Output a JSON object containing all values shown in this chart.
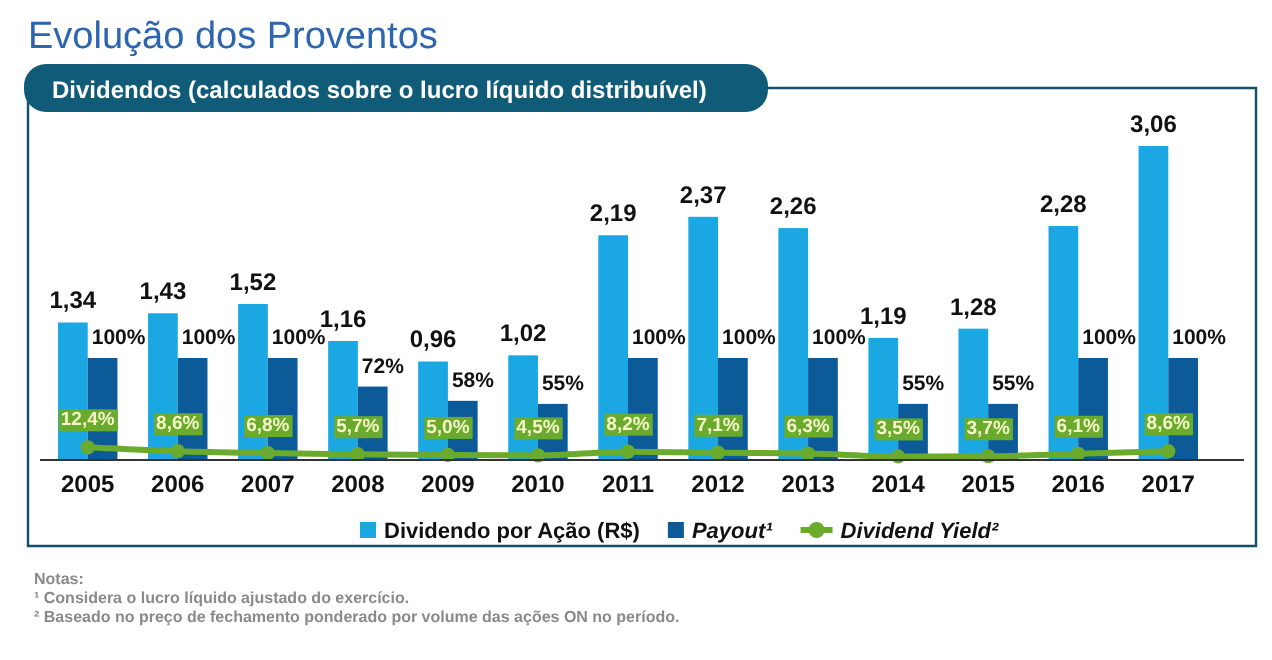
{
  "chart_data": {
    "type": "bar",
    "title": "Evolução dos Proventos",
    "subtitle": "Dividendos (calculados sobre o lucro líquido distribuível)",
    "categories": [
      "2005",
      "2006",
      "2007",
      "2008",
      "2009",
      "2010",
      "2011",
      "2012",
      "2013",
      "2014",
      "2015",
      "2016",
      "2017"
    ],
    "series": [
      {
        "name": "Dividendo por Ação (R$)",
        "color": "#1ba8e2",
        "values": [
          1.34,
          1.43,
          1.52,
          1.16,
          0.96,
          1.02,
          2.19,
          2.37,
          2.26,
          1.19,
          1.28,
          2.28,
          3.06
        ],
        "value_labels": [
          "1,34",
          "1,43",
          "1,52",
          "1,16",
          "0,96",
          "1,02",
          "2,19",
          "2,37",
          "2,26",
          "1,19",
          "1,28",
          "2,28",
          "3,06"
        ]
      },
      {
        "name": "Payout¹",
        "color": "#0c5a98",
        "axis": "y2",
        "values": [
          100,
          100,
          100,
          72,
          58,
          55,
          100,
          100,
          100,
          55,
          55,
          100,
          100
        ],
        "value_labels": [
          "100%",
          "100%",
          "100%",
          "72%",
          "58%",
          "55%",
          "100%",
          "100%",
          "100%",
          "55%",
          "55%",
          "100%",
          "100%"
        ]
      },
      {
        "name": "Dividend Yield²",
        "type": "line",
        "color": "#6aab2e",
        "axis": "y2",
        "marker": "circle",
        "values": [
          12.4,
          8.6,
          6.8,
          5.7,
          5.0,
          4.5,
          8.2,
          7.1,
          6.3,
          3.5,
          3.7,
          6.1,
          8.6
        ],
        "value_labels": [
          "12,4%",
          "8,6%",
          "6,8%",
          "5,7%",
          "5,0%",
          "4,5%",
          "8,2%",
          "7,1%",
          "6,3%",
          "3,5%",
          "3,7%",
          "6,1%",
          "8,6%"
        ]
      }
    ],
    "legend": "bottom",
    "annotations": [
      "Notas:",
      "¹ Considera o lucro líquido ajustado do exercício.",
      "² Baseado no preço de fechamento ponderado por volume das ações ON no período."
    ]
  }
}
